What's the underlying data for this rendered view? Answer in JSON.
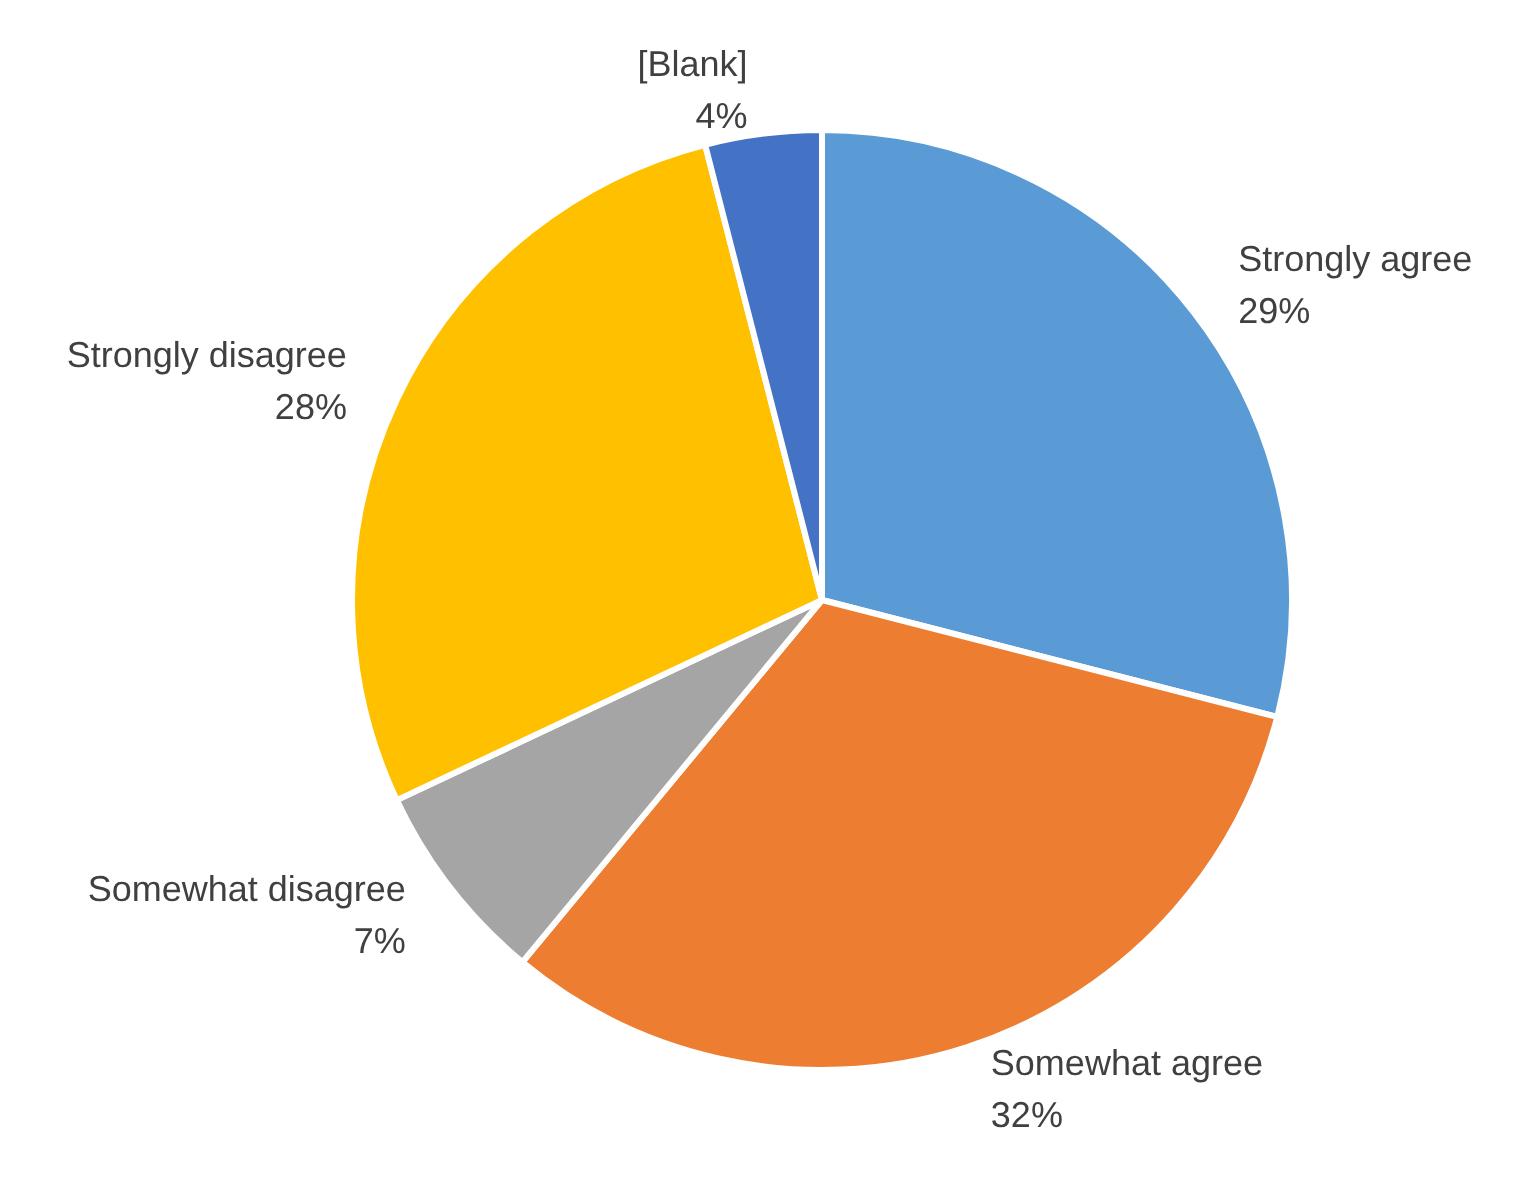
{
  "chart_data": {
    "type": "pie",
    "categories": [
      "Strongly agree",
      "Somewhat agree",
      "Somewhat disagree",
      "Strongly disagree",
      "[Blank]"
    ],
    "values": [
      29,
      32,
      7,
      28,
      4
    ],
    "value_labels": [
      "29%",
      "32%",
      "7%",
      "28%",
      "4%"
    ],
    "colors": [
      "#5b9bd5",
      "#ed7d31",
      "#a5a5a5",
      "#ffc000",
      "#4472c4"
    ],
    "legend": false
  }
}
